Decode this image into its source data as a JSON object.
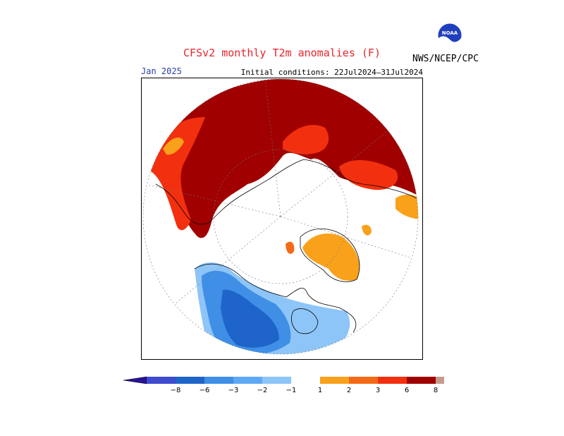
{
  "title": "CFSv2 monthly T2m anomalies (F)",
  "target_month": "Jan 2025",
  "initial_conditions": "Initial conditions: 22Jul2024–31Jul2024",
  "agency": "NWS/NCEP/CPC",
  "logo_text": "NOAA",
  "colorbar": {
    "ticks": [
      "−8",
      "−6",
      "−3",
      "−2",
      "−1",
      "1",
      "2",
      "3",
      "6",
      "8"
    ],
    "colors": [
      "#28139a",
      "#3e4bd0",
      "#1e64c9",
      "#3f8fe6",
      "#5fa8f3",
      "#8ec5f8",
      "#ffffff",
      "#f9a11b",
      "#f36a16",
      "#f2300f",
      "#a00000",
      "#c69b8d",
      "#6b3d30"
    ]
  },
  "colors": {
    "strong_warm": "#a00000",
    "warm": "#f2300f",
    "mild_warm": "#f36a16",
    "light_warm": "#f9a11b",
    "cool": "#5fa8f3",
    "cold": "#3f8fe6",
    "very_cold": "#1e64c9"
  }
}
